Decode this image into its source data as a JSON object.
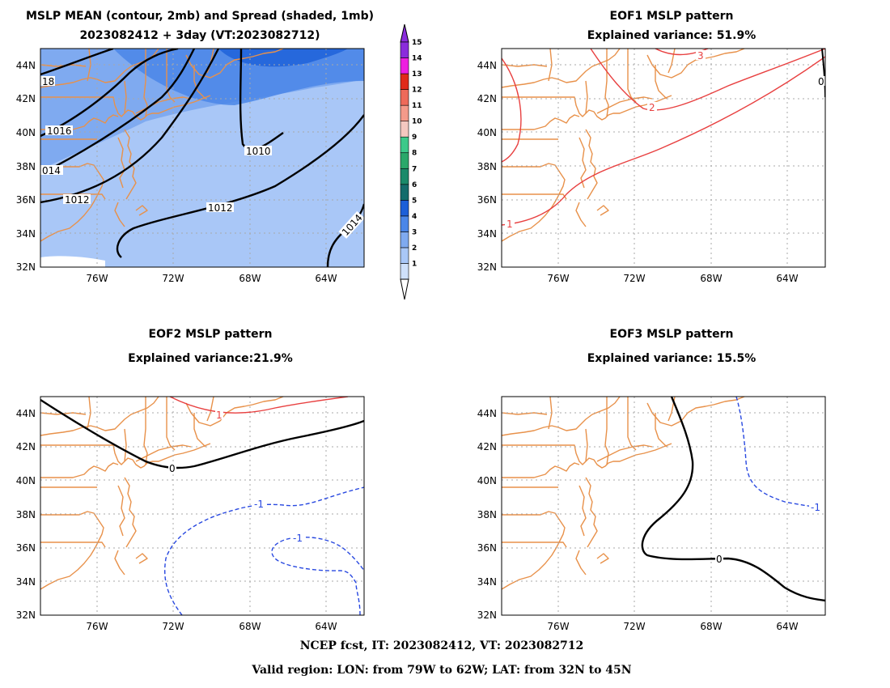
{
  "panels": {
    "mean": {
      "title_line1": "MSLP MEAN (contour, 2mb) and Spread (shaded, 1mb)",
      "title_line2": "2023082412 + 3day (VT:2023082712)",
      "contour_labels": [
        "18",
        "1016",
        "014",
        "1012",
        "1010",
        "1012",
        "1014"
      ]
    },
    "eof1": {
      "title_line1": "EOF1 MSLP pattern",
      "title_line2": "Explained variance: 51.9%",
      "contour_labels": [
        "3",
        "2",
        "1",
        "0"
      ]
    },
    "eof2": {
      "title_line1": "EOF2 MSLP pattern",
      "title_line2": "Explained variance:21.9%",
      "contour_labels": [
        "1",
        "0",
        "-1",
        "-1"
      ]
    },
    "eof3": {
      "title_line1": "EOF3 MSLP pattern",
      "title_line2": "Explained variance: 15.5%",
      "contour_labels": [
        "0",
        "-1"
      ]
    }
  },
  "axes": {
    "lat_ticks": [
      "44N",
      "42N",
      "40N",
      "38N",
      "36N",
      "34N",
      "32N"
    ],
    "lon_ticks": [
      "76W",
      "72W",
      "68W",
      "64W"
    ]
  },
  "colorbar": {
    "labels": [
      "1",
      "2",
      "3",
      "4",
      "5",
      "6",
      "7",
      "8",
      "9",
      "10",
      "11",
      "12",
      "13",
      "14",
      "15"
    ],
    "colors": [
      "#cfe0fa",
      "#a9c7f7",
      "#7faaf0",
      "#4a86e8",
      "#1c5fd8",
      "#146c6c",
      "#1a8a6a",
      "#2aa86a",
      "#3cc98a",
      "#f4c8c0",
      "#f49a8a",
      "#ee6a5a",
      "#e02a1a",
      "#ee1ee0",
      "#8a2cdc"
    ]
  },
  "footer": {
    "line1": "NCEP fcst, IT: 2023082412, VT: 2023082712",
    "line2": "Valid region: LON: from 79W to 62W; LAT: from 32N to 45N"
  }
}
